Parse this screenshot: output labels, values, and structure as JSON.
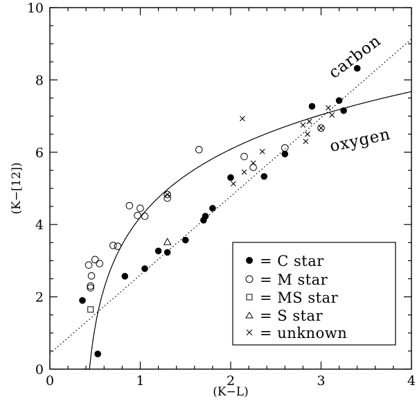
{
  "chart_data": {
    "type": "scatter",
    "title": "",
    "xlabel": "(K−L)",
    "ylabel": "(K−[12])",
    "xlim": [
      0,
      4
    ],
    "ylim": [
      0,
      10
    ],
    "x_ticks": [
      "0",
      "1",
      "2",
      "3",
      "4"
    ],
    "y_ticks": [
      "0",
      "2",
      "4",
      "6",
      "8",
      "10"
    ],
    "grid": false,
    "legend_position": "bottom-right",
    "legend": [
      {
        "symbol": "filled-circle",
        "label": "= C star"
      },
      {
        "symbol": "open-circle",
        "label": "= M star"
      },
      {
        "symbol": "open-square",
        "label": "= MS star"
      },
      {
        "symbol": "open-triangle",
        "label": "= S star"
      },
      {
        "symbol": "cross",
        "label": "= unknown"
      }
    ],
    "curves": [
      {
        "label": "carbon",
        "style": "dotted",
        "kind": "line",
        "slope": 2.175,
        "intercept": 0.43
      },
      {
        "label": "oxygen",
        "style": "solid",
        "kind": "log",
        "x0": 0.36,
        "a": 2.0,
        "b": 0.93
      }
    ],
    "series": [
      {
        "name": "C star",
        "marker": "filled-circle",
        "points": [
          [
            0.36,
            1.9
          ],
          [
            0.53,
            0.42
          ],
          [
            0.83,
            2.57
          ],
          [
            1.05,
            2.78
          ],
          [
            1.2,
            3.27
          ],
          [
            1.3,
            3.23
          ],
          [
            1.5,
            3.57
          ],
          [
            1.7,
            4.12
          ],
          [
            1.72,
            4.23
          ],
          [
            1.8,
            4.45
          ],
          [
            2.0,
            5.3
          ],
          [
            2.37,
            5.33
          ],
          [
            2.6,
            5.95
          ],
          [
            2.9,
            7.27
          ],
          [
            3.2,
            7.43
          ],
          [
            3.25,
            7.15
          ],
          [
            3.4,
            8.32
          ]
        ]
      },
      {
        "name": "M star",
        "marker": "open-circle",
        "points": [
          [
            0.43,
            2.88
          ],
          [
            0.45,
            2.25
          ],
          [
            0.45,
            2.3
          ],
          [
            0.46,
            2.58
          ],
          [
            0.5,
            3.03
          ],
          [
            0.55,
            2.92
          ],
          [
            0.7,
            3.42
          ],
          [
            0.75,
            3.4
          ],
          [
            0.88,
            4.52
          ],
          [
            0.97,
            4.25
          ],
          [
            1.0,
            4.45
          ],
          [
            1.05,
            4.23
          ],
          [
            1.3,
            4.73
          ],
          [
            1.3,
            4.83
          ],
          [
            1.65,
            6.07
          ],
          [
            2.15,
            5.88
          ],
          [
            2.25,
            5.58
          ],
          [
            2.6,
            6.12
          ],
          [
            3.0,
            6.67
          ]
        ]
      },
      {
        "name": "MS star",
        "marker": "open-square",
        "points": [
          [
            0.45,
            1.65
          ]
        ]
      },
      {
        "name": "S star",
        "marker": "open-triangle",
        "points": [
          [
            1.3,
            3.52
          ]
        ]
      },
      {
        "name": "unknown",
        "marker": "cross",
        "points": [
          [
            1.3,
            4.83
          ],
          [
            2.03,
            5.13
          ],
          [
            2.13,
            6.93
          ],
          [
            2.15,
            5.45
          ],
          [
            2.25,
            5.7
          ],
          [
            2.35,
            6.02
          ],
          [
            2.8,
            6.75
          ],
          [
            2.83,
            6.3
          ],
          [
            2.85,
            6.5
          ],
          [
            2.87,
            6.85
          ],
          [
            3.0,
            6.67
          ],
          [
            3.08,
            7.23
          ],
          [
            3.12,
            7.03
          ]
        ]
      }
    ]
  }
}
